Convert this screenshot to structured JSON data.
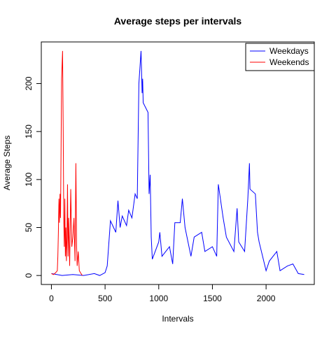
{
  "chart_data": {
    "type": "line",
    "title": "Average steps per intervals",
    "xlabel": "Intervals",
    "ylabel": "Average Steps",
    "xlim": [
      -94.2,
      2449.2
    ],
    "ylim": [
      -9.36,
      243.36
    ],
    "xticks": [
      0,
      500,
      1000,
      1500,
      2000
    ],
    "yticks": [
      0,
      50,
      100,
      150,
      200
    ],
    "legend": "topright",
    "series": [
      {
        "name": "Weekdays",
        "color": "#0000ff",
        "x": [
          0,
          100,
          200,
          300,
          400,
          450,
          500,
          520,
          550,
          600,
          620,
          640,
          660,
          700,
          720,
          750,
          780,
          800,
          815,
          835,
          845,
          850,
          855,
          900,
          910,
          920,
          930,
          940,
          1000,
          1010,
          1030,
          1100,
          1130,
          1150,
          1200,
          1220,
          1245,
          1300,
          1330,
          1400,
          1430,
          1500,
          1540,
          1555,
          1600,
          1630,
          1700,
          1730,
          1745,
          1800,
          1830,
          1845,
          1850,
          1900,
          1920,
          1935,
          2000,
          2030,
          2100,
          2130,
          2200,
          2250,
          2300,
          2355
        ],
        "values": [
          2,
          0,
          1,
          0,
          2,
          0,
          3,
          10,
          57,
          45,
          78,
          50,
          62,
          52,
          68,
          60,
          85,
          80,
          200,
          234,
          190,
          205,
          180,
          170,
          85,
          105,
          40,
          17,
          35,
          45,
          20,
          30,
          12,
          55,
          55,
          80,
          50,
          20,
          40,
          45,
          25,
          30,
          20,
          95,
          60,
          40,
          25,
          70,
          35,
          25,
          80,
          117,
          90,
          85,
          45,
          35,
          5,
          15,
          25,
          5,
          10,
          12,
          2,
          1
        ]
      },
      {
        "name": "Weekends",
        "color": "#ff0000",
        "x": [
          0,
          20,
          40,
          55,
          60,
          65,
          70,
          75,
          80,
          85,
          95,
          104,
          110,
          115,
          120,
          125,
          130,
          135,
          140,
          145,
          150,
          155,
          160,
          170,
          180,
          190,
          200,
          210,
          220,
          228,
          235,
          240,
          250,
          260,
          270,
          288
        ],
        "values": [
          2,
          1,
          3,
          5,
          20,
          45,
          80,
          55,
          85,
          60,
          205,
          234,
          150,
          60,
          30,
          80,
          20,
          50,
          15,
          40,
          95,
          20,
          60,
          10,
          90,
          30,
          40,
          60,
          15,
          117,
          30,
          10,
          25,
          5,
          3,
          0
        ]
      }
    ]
  }
}
